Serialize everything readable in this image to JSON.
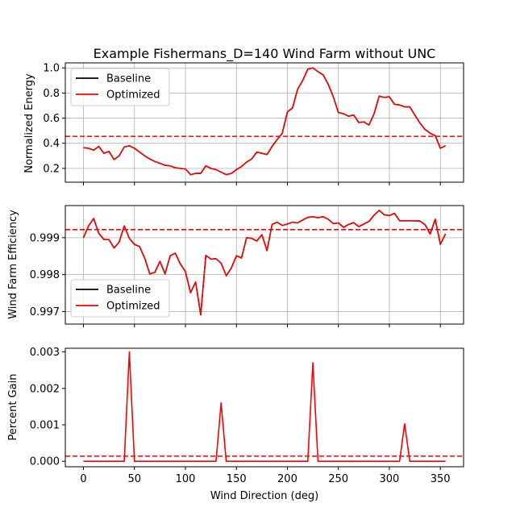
{
  "chart_data": [
    {
      "type": "line",
      "title": "Example Fishermans_D=140 Wind Farm without UNC",
      "xlabel": "",
      "ylabel": "Normalized Energy",
      "xlim": [
        -17.8,
        372.8
      ],
      "ylim": [
        0.09,
        1.04
      ],
      "xticks": [
        0,
        50,
        100,
        150,
        200,
        250,
        300,
        350
      ],
      "yticks": [
        0.2,
        0.4,
        0.6,
        0.8,
        1.0
      ],
      "ytick_labels": [
        "0.2",
        "0.4",
        "0.6",
        "0.8",
        "1.0"
      ],
      "show_xtick_labels": false,
      "grid": true,
      "legend": "upper-left",
      "legend_entries": [
        "Baseline",
        "Optimized"
      ],
      "mean_line": 0.455,
      "x": [
        0,
        5,
        10,
        15,
        20,
        25,
        30,
        35,
        40,
        45,
        50,
        55,
        60,
        65,
        70,
        75,
        80,
        85,
        90,
        95,
        100,
        105,
        110,
        115,
        120,
        125,
        130,
        135,
        140,
        145,
        150,
        155,
        160,
        165,
        170,
        175,
        180,
        185,
        190,
        195,
        200,
        205,
        210,
        215,
        220,
        225,
        230,
        235,
        240,
        245,
        250,
        255,
        260,
        265,
        270,
        275,
        280,
        285,
        290,
        295,
        300,
        305,
        310,
        315,
        320,
        325,
        330,
        335,
        340,
        345,
        350,
        355
      ],
      "series": [
        {
          "name": "Baseline",
          "color": "#000000",
          "values": [
            0.365,
            0.36,
            0.345,
            0.375,
            0.32,
            0.335,
            0.27,
            0.3,
            0.37,
            0.38,
            0.36,
            0.33,
            0.3,
            0.275,
            0.255,
            0.24,
            0.225,
            0.22,
            0.205,
            0.2,
            0.195,
            0.15,
            0.16,
            0.16,
            0.22,
            0.2,
            0.19,
            0.17,
            0.15,
            0.16,
            0.19,
            0.215,
            0.25,
            0.275,
            0.33,
            0.32,
            0.31,
            0.375,
            0.43,
            0.48,
            0.65,
            0.68,
            0.83,
            0.9,
            0.99,
            1.0,
            0.97,
            0.945,
            0.87,
            0.77,
            0.645,
            0.635,
            0.615,
            0.625,
            0.565,
            0.57,
            0.545,
            0.635,
            0.775,
            0.765,
            0.77,
            0.71,
            0.705,
            0.69,
            0.69,
            0.625,
            0.56,
            0.51,
            0.48,
            0.46,
            0.36,
            0.38
          ]
        },
        {
          "name": "Optimized",
          "color": "#ff0000",
          "values": [
            0.365,
            0.36,
            0.345,
            0.375,
            0.32,
            0.335,
            0.27,
            0.3,
            0.37,
            0.38,
            0.36,
            0.33,
            0.3,
            0.275,
            0.255,
            0.24,
            0.225,
            0.22,
            0.205,
            0.2,
            0.195,
            0.15,
            0.16,
            0.16,
            0.22,
            0.2,
            0.19,
            0.17,
            0.15,
            0.16,
            0.19,
            0.215,
            0.25,
            0.275,
            0.33,
            0.32,
            0.31,
            0.375,
            0.43,
            0.48,
            0.65,
            0.68,
            0.83,
            0.9,
            0.99,
            1.0,
            0.97,
            0.945,
            0.87,
            0.77,
            0.645,
            0.635,
            0.615,
            0.625,
            0.565,
            0.57,
            0.545,
            0.635,
            0.775,
            0.765,
            0.77,
            0.71,
            0.705,
            0.69,
            0.69,
            0.625,
            0.56,
            0.51,
            0.48,
            0.46,
            0.36,
            0.38
          ]
        }
      ]
    },
    {
      "type": "line",
      "title": "",
      "xlabel": "",
      "ylabel": "Wind Farm Efficiency",
      "xlim": [
        -17.8,
        372.8
      ],
      "ylim": [
        0.99666,
        0.99987
      ],
      "xticks": [
        0,
        50,
        100,
        150,
        200,
        250,
        300,
        350
      ],
      "yticks": [
        0.997,
        0.998,
        0.999
      ],
      "ytick_labels": [
        "0.997",
        "0.998",
        "0.999"
      ],
      "show_xtick_labels": false,
      "grid": true,
      "legend": "lower-left",
      "legend_entries": [
        "Baseline",
        "Optimized"
      ],
      "mean_line": 0.99922,
      "x": [
        0,
        5,
        10,
        15,
        20,
        25,
        30,
        35,
        40,
        45,
        50,
        55,
        60,
        65,
        70,
        75,
        80,
        85,
        90,
        95,
        100,
        105,
        110,
        115,
        120,
        125,
        130,
        135,
        140,
        145,
        150,
        155,
        160,
        165,
        170,
        175,
        180,
        185,
        190,
        195,
        200,
        205,
        210,
        215,
        220,
        225,
        230,
        235,
        240,
        245,
        250,
        255,
        260,
        265,
        270,
        275,
        280,
        285,
        290,
        295,
        300,
        305,
        310,
        315,
        320,
        325,
        330,
        335,
        340,
        345,
        350,
        355
      ],
      "series": [
        {
          "name": "Baseline",
          "color": "#000000",
          "values": [
            0.999,
            0.99932,
            0.99952,
            0.99912,
            0.99895,
            0.99895,
            0.99872,
            0.99888,
            0.99932,
            0.99898,
            0.99882,
            0.99876,
            0.99845,
            0.99802,
            0.99806,
            0.99836,
            0.99802,
            0.99851,
            0.99858,
            0.99829,
            0.99808,
            0.99751,
            0.9978,
            0.99691,
            0.99852,
            0.99842,
            0.99843,
            0.99831,
            0.99797,
            0.99818,
            0.99851,
            0.99845,
            0.999,
            0.99898,
            0.99891,
            0.99908,
            0.99865,
            0.99936,
            0.99942,
            0.99933,
            0.99937,
            0.99942,
            0.9994,
            0.99948,
            0.99955,
            0.99957,
            0.99954,
            0.99957,
            0.9995,
            0.99938,
            0.9994,
            0.99928,
            0.99936,
            0.99941,
            0.9993,
            0.99937,
            0.99944,
            0.99961,
            0.99974,
            0.99962,
            0.9996,
            0.99966,
            0.99946,
            0.99946,
            0.99946,
            0.99946,
            0.99945,
            0.99935,
            0.9991,
            0.9995,
            0.99882,
            0.9991
          ]
        },
        {
          "name": "Optimized",
          "color": "#ff0000",
          "values": [
            0.999,
            0.99932,
            0.99952,
            0.99912,
            0.99895,
            0.99895,
            0.99872,
            0.99888,
            0.99932,
            0.99898,
            0.99882,
            0.99876,
            0.99845,
            0.99802,
            0.99806,
            0.99836,
            0.99802,
            0.99851,
            0.99858,
            0.99829,
            0.99808,
            0.99751,
            0.9978,
            0.99691,
            0.99852,
            0.99842,
            0.99843,
            0.99831,
            0.99797,
            0.99818,
            0.99851,
            0.99845,
            0.999,
            0.99898,
            0.99891,
            0.99908,
            0.99865,
            0.99936,
            0.99942,
            0.99933,
            0.99937,
            0.99942,
            0.9994,
            0.99948,
            0.99955,
            0.99957,
            0.99954,
            0.99957,
            0.9995,
            0.99938,
            0.9994,
            0.99928,
            0.99936,
            0.99941,
            0.9993,
            0.99937,
            0.99944,
            0.99961,
            0.99974,
            0.99962,
            0.9996,
            0.99966,
            0.99946,
            0.99946,
            0.99946,
            0.99946,
            0.99945,
            0.99935,
            0.9991,
            0.9995,
            0.99882,
            0.9991
          ]
        }
      ]
    },
    {
      "type": "line",
      "title": "",
      "xlabel": "Wind Direction (deg)",
      "ylabel": "Percent Gain",
      "xlim": [
        -17.8,
        372.8
      ],
      "ylim": [
        -0.00015,
        0.0031
      ],
      "xticks": [
        0,
        50,
        100,
        150,
        200,
        250,
        300,
        350
      ],
      "xtick_labels": [
        "0",
        "50",
        "100",
        "150",
        "200",
        "250",
        "300",
        "350"
      ],
      "yticks": [
        0.0,
        0.001,
        0.002,
        0.003
      ],
      "ytick_labels": [
        "0.000",
        "0.001",
        "0.002",
        "0.003"
      ],
      "show_xtick_labels": true,
      "grid": false,
      "legend": "none",
      "legend_entries": [],
      "mean_line": 0.00014,
      "x": [
        0,
        5,
        10,
        15,
        20,
        25,
        30,
        35,
        40,
        45,
        50,
        55,
        60,
        65,
        70,
        75,
        80,
        85,
        90,
        95,
        100,
        105,
        110,
        115,
        120,
        125,
        130,
        135,
        140,
        145,
        150,
        155,
        160,
        165,
        170,
        175,
        180,
        185,
        190,
        195,
        200,
        205,
        210,
        215,
        220,
        225,
        230,
        235,
        240,
        245,
        250,
        255,
        260,
        265,
        270,
        275,
        280,
        285,
        290,
        295,
        300,
        305,
        310,
        315,
        320,
        325,
        330,
        335,
        340,
        345,
        350,
        355
      ],
      "series": [
        {
          "name": "Optimized",
          "color": "#ff0000",
          "values": [
            0,
            0,
            0,
            0,
            0,
            0,
            0,
            0,
            0,
            0.003,
            0,
            0,
            0,
            0,
            0,
            0,
            0,
            0,
            0,
            0,
            0,
            0,
            0,
            0,
            0,
            0,
            0,
            0.0016,
            0,
            0,
            0,
            0,
            0,
            0,
            0,
            0,
            0,
            0,
            0,
            0,
            0,
            0,
            0,
            0,
            0,
            0.0027,
            0,
            0,
            0,
            0,
            0,
            0,
            0,
            0,
            0,
            0,
            0,
            0,
            0,
            0,
            0,
            0,
            0,
            0.00103,
            0,
            0,
            0,
            0,
            0,
            0,
            0,
            0
          ]
        }
      ]
    }
  ]
}
